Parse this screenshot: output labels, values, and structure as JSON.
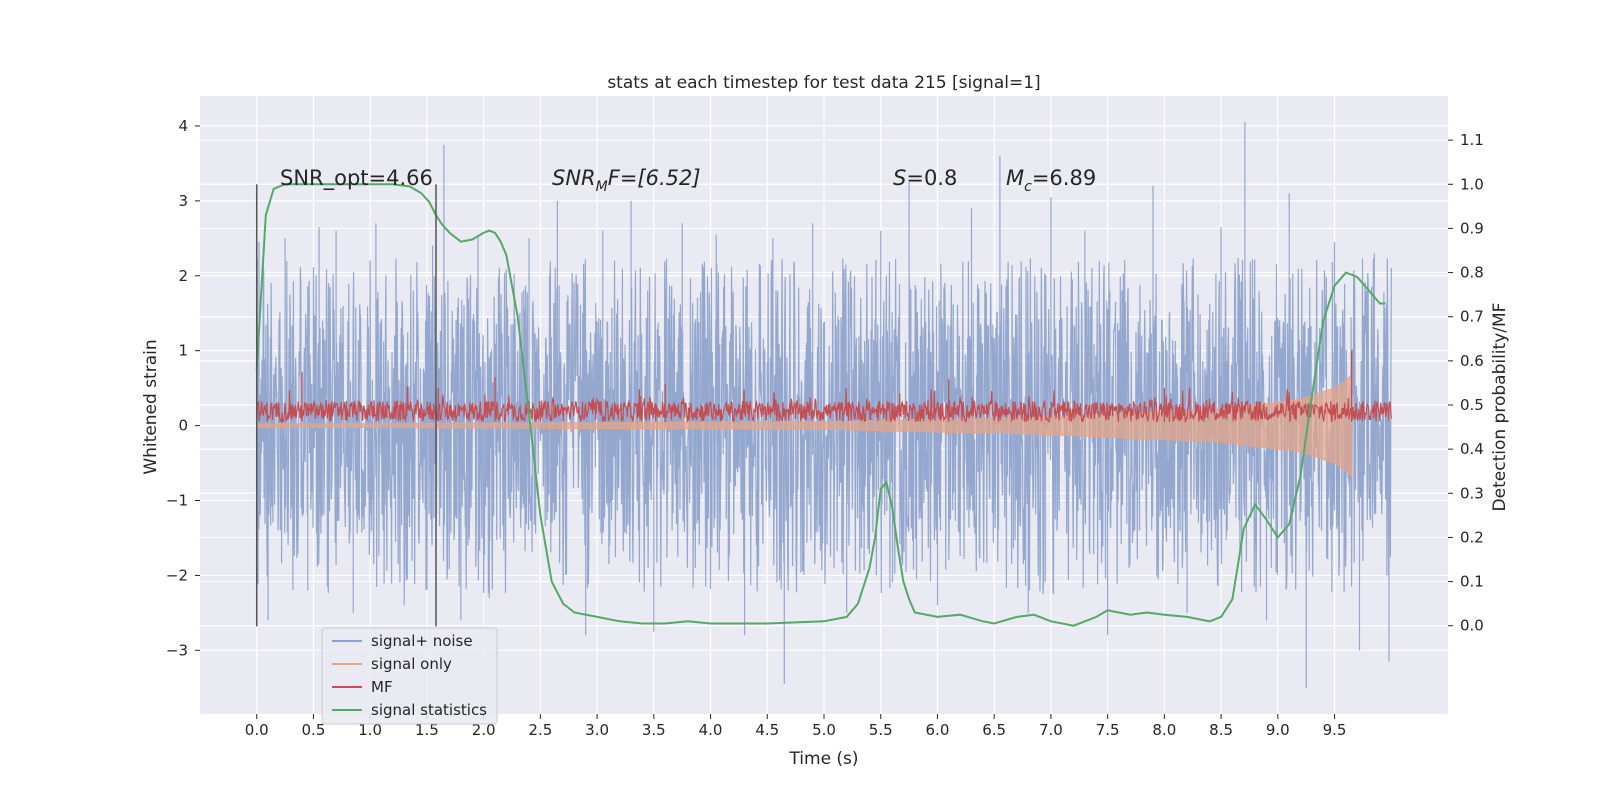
{
  "chart_data": {
    "type": "line",
    "title": "stats at each timestep for test data 215 [signal=1]",
    "xlabel": "Time (s)",
    "ylabel": "Whitened strain",
    "y2label": "Detection probability/MF",
    "xlim": [
      -0.5,
      10.5
    ],
    "ylim": [
      -3.85,
      4.4
    ],
    "y2lim": [
      -0.2,
      1.2
    ],
    "xticks": [
      "0.0",
      "0.5",
      "1.0",
      "1.5",
      "2.0",
      "2.5",
      "3.0",
      "3.5",
      "4.0",
      "4.5",
      "5.0",
      "5.5",
      "6.0",
      "6.5",
      "7.0",
      "7.5",
      "8.0",
      "8.5",
      "9.0",
      "9.5"
    ],
    "yticks": [
      "−3",
      "−2",
      "−1",
      "0",
      "1",
      "2",
      "3",
      "4"
    ],
    "y2ticks": [
      "0.0",
      "0.1",
      "0.2",
      "0.3",
      "0.4",
      "0.5",
      "0.6",
      "0.7",
      "0.8",
      "0.9",
      "1.0",
      "1.1"
    ],
    "grid": true,
    "legend": {
      "placement": "lower-left",
      "entries": [
        {
          "label": "signal+ noise",
          "color": "#8fa3cc"
        },
        {
          "label": "signal only",
          "color": "#e3a58a"
        },
        {
          "label": "MF",
          "color": "#c44e52"
        },
        {
          "label": "signal statistics",
          "color": "#55a868"
        }
      ]
    },
    "annotations": {
      "snr_opt": "SNR_opt=4.66",
      "snr_mf_base": "SNR",
      "snr_mf_sub": "M",
      "snr_mf_rest": "F=[6.52]",
      "s_sym": "S",
      "s_val": "=0.8",
      "mc_sym": "M",
      "mc_sub": "c",
      "mc_val": "=6.89"
    },
    "vlines": [
      0.0,
      1.58
    ],
    "series": [
      {
        "name": "signal+ noise",
        "color": "#8fa3cc",
        "x_range": [
          0.0,
          10.0
        ],
        "envelope_upper": 1.45,
        "envelope_lower": -1.5,
        "peaks": [
          [
            0.02,
            2.45
          ],
          [
            0.1,
            -2.6
          ],
          [
            0.25,
            2.5
          ],
          [
            0.45,
            -2.2
          ],
          [
            0.55,
            2.65
          ],
          [
            0.7,
            2.6
          ],
          [
            0.85,
            -2.5
          ],
          [
            1.05,
            2.7
          ],
          [
            1.3,
            -2.4
          ],
          [
            1.55,
            2.4
          ],
          [
            1.65,
            3.75
          ],
          [
            1.8,
            -2.6
          ],
          [
            1.95,
            2.55
          ],
          [
            2.05,
            -2.3
          ],
          [
            2.4,
            2.5
          ],
          [
            2.65,
            3.0
          ],
          [
            2.9,
            -2.8
          ],
          [
            3.05,
            2.6
          ],
          [
            3.3,
            3.0
          ],
          [
            3.5,
            -2.75
          ],
          [
            3.75,
            2.7
          ],
          [
            4.05,
            2.55
          ],
          [
            4.3,
            -2.8
          ],
          [
            4.55,
            2.5
          ],
          [
            4.65,
            -3.45
          ],
          [
            4.9,
            2.7
          ],
          [
            5.2,
            -2.5
          ],
          [
            5.5,
            2.6
          ],
          [
            5.75,
            3.25
          ],
          [
            6.0,
            -2.4
          ],
          [
            6.3,
            2.9
          ],
          [
            6.55,
            3.6
          ],
          [
            6.8,
            -2.5
          ],
          [
            7.0,
            3.05
          ],
          [
            7.3,
            2.6
          ],
          [
            7.5,
            -2.8
          ],
          [
            7.9,
            3.2
          ],
          [
            8.2,
            -2.5
          ],
          [
            8.5,
            2.65
          ],
          [
            8.71,
            4.05
          ],
          [
            8.9,
            -2.6
          ],
          [
            9.1,
            3.1
          ],
          [
            9.25,
            -3.5
          ],
          [
            9.5,
            2.45
          ],
          [
            9.72,
            -3.0
          ],
          [
            9.85,
            2.3
          ],
          [
            9.98,
            -3.15
          ]
        ]
      },
      {
        "name": "signal only",
        "color": "#e3a58a",
        "points": [
          [
            0.0,
            0.02
          ],
          [
            5.0,
            0.05
          ],
          [
            7.0,
            0.12
          ],
          [
            8.5,
            0.22
          ],
          [
            9.2,
            0.35
          ],
          [
            9.5,
            0.5
          ],
          [
            9.6,
            0.6
          ],
          [
            9.65,
            0.68
          ]
        ]
      },
      {
        "name": "MF",
        "color": "#c44e52",
        "x_range": [
          0.0,
          10.0
        ],
        "base": 0.05,
        "level": 0.28,
        "peaks": [
          [
            0.4,
            0.72
          ],
          [
            1.6,
            0.5
          ],
          [
            2.1,
            0.65
          ],
          [
            3.6,
            0.55
          ],
          [
            6.1,
            0.62
          ],
          [
            8.0,
            0.5
          ],
          [
            9.65,
            1.0
          ]
        ]
      },
      {
        "name": "signal statistics",
        "color": "#55a868",
        "x": [
          0.0,
          0.08,
          0.15,
          0.25,
          0.4,
          0.6,
          0.8,
          1.0,
          1.2,
          1.35,
          1.45,
          1.52,
          1.58,
          1.63,
          1.7,
          1.8,
          1.9,
          2.0,
          2.05,
          2.1,
          2.15,
          2.2,
          2.3,
          2.4,
          2.5,
          2.6,
          2.7,
          2.8,
          3.0,
          3.2,
          3.4,
          3.6,
          3.8,
          4.0,
          4.5,
          5.0,
          5.2,
          5.3,
          5.4,
          5.45,
          5.5,
          5.55,
          5.6,
          5.65,
          5.7,
          5.75,
          5.8,
          6.0,
          6.2,
          6.4,
          6.5,
          6.7,
          6.85,
          7.0,
          7.2,
          7.4,
          7.5,
          7.7,
          7.85,
          8.0,
          8.2,
          8.4,
          8.5,
          8.6,
          8.7,
          8.8,
          8.9,
          9.0,
          9.1,
          9.2,
          9.3,
          9.4,
          9.5,
          9.6,
          9.7,
          9.8,
          9.9,
          9.95
        ],
        "values": [
          0.58,
          0.93,
          0.99,
          1.0,
          1.0,
          1.0,
          1.0,
          1.0,
          1.0,
          0.995,
          0.98,
          0.96,
          0.93,
          0.91,
          0.89,
          0.87,
          0.875,
          0.89,
          0.895,
          0.89,
          0.87,
          0.84,
          0.7,
          0.48,
          0.25,
          0.1,
          0.05,
          0.03,
          0.02,
          0.01,
          0.005,
          0.005,
          0.01,
          0.005,
          0.005,
          0.01,
          0.02,
          0.05,
          0.13,
          0.2,
          0.31,
          0.325,
          0.27,
          0.18,
          0.1,
          0.06,
          0.03,
          0.02,
          0.025,
          0.01,
          0.005,
          0.02,
          0.025,
          0.01,
          0.0,
          0.02,
          0.035,
          0.025,
          0.03,
          0.025,
          0.02,
          0.01,
          0.02,
          0.06,
          0.22,
          0.275,
          0.24,
          0.2,
          0.23,
          0.34,
          0.52,
          0.69,
          0.77,
          0.8,
          0.79,
          0.76,
          0.73,
          0.73
        ]
      }
    ]
  }
}
